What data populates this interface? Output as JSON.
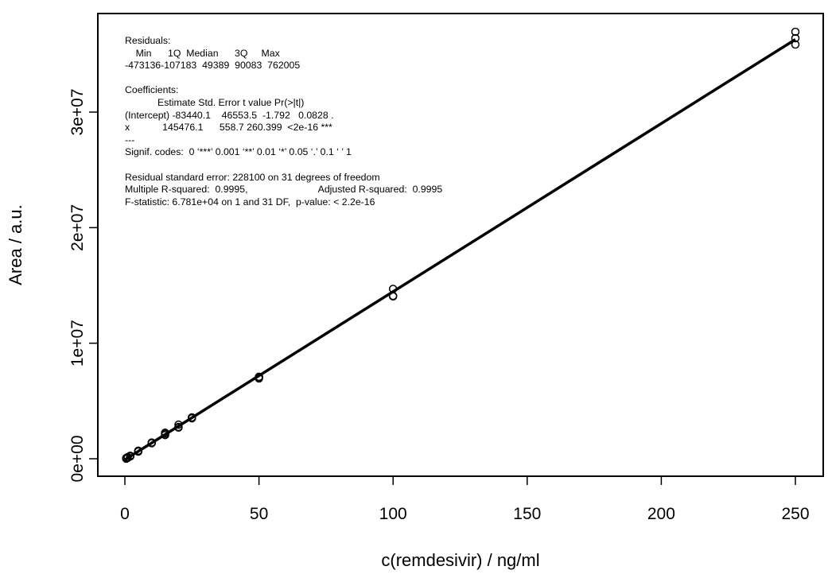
{
  "chart_data": {
    "type": "scatter",
    "title": "",
    "xlabel": "c(remdesivir) / ng/ml",
    "ylabel": "Area / a.u.",
    "xlim": [
      0,
      250
    ],
    "ylim": [
      0,
      36000000
    ],
    "xticks": [
      0,
      50,
      100,
      150,
      200,
      250
    ],
    "xtick_labels": [
      "0",
      "50",
      "100",
      "150",
      "200",
      "250"
    ],
    "yticks": [
      0,
      10000000,
      20000000,
      30000000
    ],
    "ytick_labels": [
      "0e+00",
      "1e+07",
      "2e+07",
      "3e+07"
    ],
    "grid": false,
    "marker": "open-circle",
    "fit_line": {
      "intercept": -83440.1,
      "slope": 145476.1
    },
    "points": [
      [
        0.5,
        30000
      ],
      [
        0.5,
        10000
      ],
      [
        0.5,
        60000
      ],
      [
        1,
        110000
      ],
      [
        1,
        70000
      ],
      [
        1,
        140000
      ],
      [
        2,
        230000
      ],
      [
        2,
        200000
      ],
      [
        2,
        260000
      ],
      [
        5,
        650000
      ],
      [
        5,
        620000
      ],
      [
        5,
        700000
      ],
      [
        10,
        1380000
      ],
      [
        10,
        1350000
      ],
      [
        10,
        1400000
      ],
      [
        15,
        2150000
      ],
      [
        15,
        2250000
      ],
      [
        15,
        2050000
      ],
      [
        20,
        2950000
      ],
      [
        20,
        2700000
      ],
      [
        20,
        2750000
      ],
      [
        25,
        3550000
      ],
      [
        25,
        3500000
      ],
      [
        25,
        3580000
      ],
      [
        50,
        7050000
      ],
      [
        50,
        6950000
      ],
      [
        50,
        7100000
      ],
      [
        100,
        14700000
      ],
      [
        100,
        14100000
      ],
      [
        100,
        14050000
      ],
      [
        250,
        36950000
      ],
      [
        250,
        36400000
      ],
      [
        250,
        35850000
      ]
    ],
    "annotation": [
      "Residuals:",
      "    Min      1Q  Median      3Q     Max",
      "-473136-107183  49389  90083  762005",
      "",
      "Coefficients:",
      "            Estimate Std. Error t value Pr(>|t|)",
      "(Intercept) -83440.1    46553.5  -1.792   0.0828 .",
      "x            145476.1      558.7 260.399  <2e-16 ***",
      "---",
      "Signif. codes:  0 ‘***’ 0.001 ‘**’ 0.01 ‘*’ 0.05 ‘.’ 0.1 ‘ ’ 1",
      "",
      "Residual standard error: 228100 on 31 degrees of freedom",
      "Multiple R-squared:  0.9995,                          Adjusted R-squared:  0.9995",
      "F-statistic: 6.781e+04 on 1 and 31 DF,  p-value: < 2.2e-16"
    ]
  }
}
